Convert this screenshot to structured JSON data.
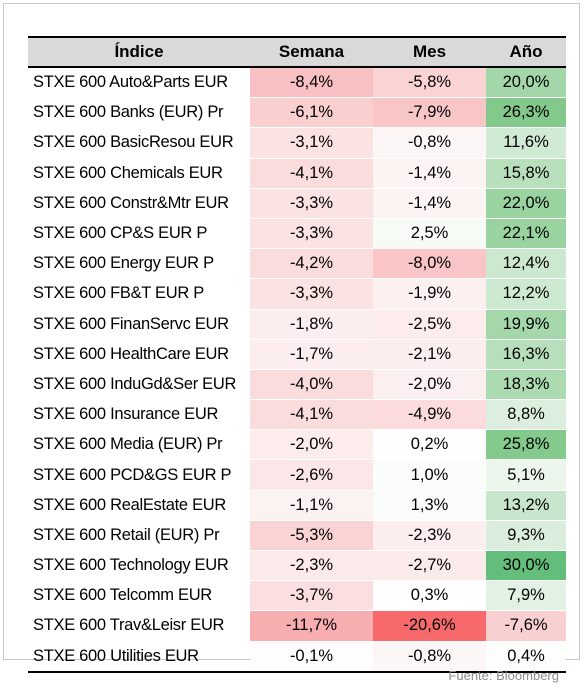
{
  "table": {
    "headers": [
      "Índice",
      "Semana",
      "Mes",
      "Año"
    ],
    "rows": [
      {
        "name": "STXE 600 Auto&Parts EUR",
        "semana": "-8,4%",
        "mes": "-5,8%",
        "ano": "20,0%",
        "semana_color": "#f8c0c2",
        "mes_color": "#fad4d5",
        "ano_color": "#a3d7a9"
      },
      {
        "name": "STXE 600 Banks (EUR) Pr",
        "semana": "-6,1%",
        "mes": "-7,9%",
        "ano": "26,3%",
        "semana_color": "#f9cfd0",
        "mes_color": "#f9c6c8",
        "ano_color": "#82c98b"
      },
      {
        "name": "STXE 600 BasicResou EUR",
        "semana": "-3,1%",
        "mes": "-0,8%",
        "ano": "11,6%",
        "semana_color": "#fbe3e4",
        "mes_color": "#fdf6f6",
        "ano_color": "#d1ead3"
      },
      {
        "name": "STXE 600 Chemicals EUR",
        "semana": "-4,1%",
        "mes": "-1,4%",
        "ano": "15,8%",
        "semana_color": "#fadcdd",
        "mes_color": "#fcf3f3",
        "ano_color": "#b9e0bd"
      },
      {
        "name": "STXE 600 Constr&Mtr EUR",
        "semana": "-3,3%",
        "mes": "-1,4%",
        "ano": "22,0%",
        "semana_color": "#fbe2e3",
        "mes_color": "#fcf3f3",
        "ano_color": "#98d3a0"
      },
      {
        "name": "STXE 600 CP&S EUR P",
        "semana": "-3,3%",
        "mes": "2,5%",
        "ano": "22,1%",
        "semana_color": "#fbe2e3",
        "mes_color": "#f6fbf6",
        "ano_color": "#98d3a0"
      },
      {
        "name": "STXE 600 Energy EUR P",
        "semana": "-4,2%",
        "mes": "-8,0%",
        "ano": "12,4%",
        "semana_color": "#fadcdd",
        "mes_color": "#f9c5c7",
        "ano_color": "#cce8cf"
      },
      {
        "name": "STXE 600 FB&T EUR P",
        "semana": "-3,3%",
        "mes": "-1,9%",
        "ano": "12,2%",
        "semana_color": "#fbe2e3",
        "mes_color": "#fcf0f0",
        "ano_color": "#cde9d0"
      },
      {
        "name": "STXE 600 FinanServc EUR",
        "semana": "-1,8%",
        "mes": "-2,5%",
        "ano": "19,9%",
        "semana_color": "#fcedee",
        "mes_color": "#fcecec",
        "ano_color": "#a4d8aa"
      },
      {
        "name": "STXE 600 HealthCare EUR",
        "semana": "-1,7%",
        "mes": "-2,1%",
        "ano": "16,3%",
        "semana_color": "#fceeee",
        "mes_color": "#fceeee",
        "ano_color": "#b7dfbb"
      },
      {
        "name": "STXE 600 InduGd&Ser EUR",
        "semana": "-4,0%",
        "mes": "-2,0%",
        "ano": "18,3%",
        "semana_color": "#fadcdd",
        "mes_color": "#fcefef",
        "ano_color": "#acdbb1"
      },
      {
        "name": "STXE 600 Insurance EUR",
        "semana": "-4,1%",
        "mes": "-4,9%",
        "ano": "8,8%",
        "semana_color": "#fadcdd",
        "mes_color": "#fbdbdc",
        "ano_color": "#dcefde"
      },
      {
        "name": "STXE 600 Media (EUR) Pr",
        "semana": "-2,0%",
        "mes": "0,2%",
        "ano": "25,8%",
        "semana_color": "#fcecec",
        "mes_color": "#fefefe",
        "ano_color": "#84ca8d"
      },
      {
        "name": "STXE 600 PCD&GS EUR P",
        "semana": "-2,6%",
        "mes": "1,0%",
        "ano": "5,1%",
        "semana_color": "#fbe7e7",
        "mes_color": "#fbfdfb",
        "ano_color": "#ecf6ed"
      },
      {
        "name": "STXE 600 RealEstate EUR",
        "semana": "-1,1%",
        "mes": "1,3%",
        "ano": "13,2%",
        "semana_color": "#fdf2f2",
        "mes_color": "#fafcfa",
        "ano_color": "#c8e6cb"
      },
      {
        "name": "STXE 600 Retail (EUR) Pr",
        "semana": "-5,3%",
        "mes": "-2,3%",
        "ano": "9,3%",
        "semana_color": "#fad4d5",
        "mes_color": "#fcedee",
        "ano_color": "#dbeedd"
      },
      {
        "name": "STXE 600 Technology EUR",
        "semana": "-2,3%",
        "mes": "-2,7%",
        "ano": "30,0%",
        "semana_color": "#fce9ea",
        "mes_color": "#fcebeb",
        "ano_color": "#63be7b"
      },
      {
        "name": "STXE 600 Telcomm EUR",
        "semana": "-3,7%",
        "mes": "0,3%",
        "ano": "7,9%",
        "semana_color": "#fbdfe0",
        "mes_color": "#fefffe",
        "ano_color": "#e1f1e3"
      },
      {
        "name": "STXE 600 Trav&Leisr EUR",
        "semana": "-11,7%",
        "mes": "-20,6%",
        "ano": "-7,6%",
        "semana_color": "#f8aeb1",
        "mes_color": "#f8696b",
        "ano_color": "#f9d0d1"
      },
      {
        "name": "STXE 600 Utilities EUR",
        "semana": "-0,1%",
        "mes": "-0,8%",
        "ano": "0,4%",
        "semana_color": "#fefcfc",
        "mes_color": "#fdf6f6",
        "ano_color": "#fcfefc"
      }
    ]
  },
  "source": "Fuente: Bloomberg"
}
